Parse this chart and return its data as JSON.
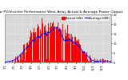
{
  "title": "Solar PV/Inverter Performance West Array Actual & Average Power Output",
  "title_fontsize": 3.2,
  "bg_color": "#ffffff",
  "plot_bg_color": "#d8d8d8",
  "grid_color": "#ffffff",
  "bar_color": "#ff0000",
  "avg_line_color": "#0000ff",
  "legend_actual_color": "#ff0000",
  "legend_avg_color": "#0000ff",
  "legend_actual": "Actual kWh",
  "legend_avg": "Average kWh",
  "legend_fontsize": 2.8,
  "ylabel_fontsize": 2.8,
  "xlabel_fontsize": 2.5,
  "tick_fontsize": 2.5,
  "ylim": [
    0,
    25
  ],
  "num_bars": 365,
  "month_positions": [
    0,
    31,
    59,
    90,
    120,
    151,
    181,
    212,
    243,
    273,
    304,
    334
  ],
  "month_labels": [
    "1/1",
    "2/1",
    "3/1",
    "4/1",
    "5/1",
    "6/1",
    "7/1",
    "8/1",
    "9/1",
    "10/1",
    "11/1",
    "12/1"
  ]
}
